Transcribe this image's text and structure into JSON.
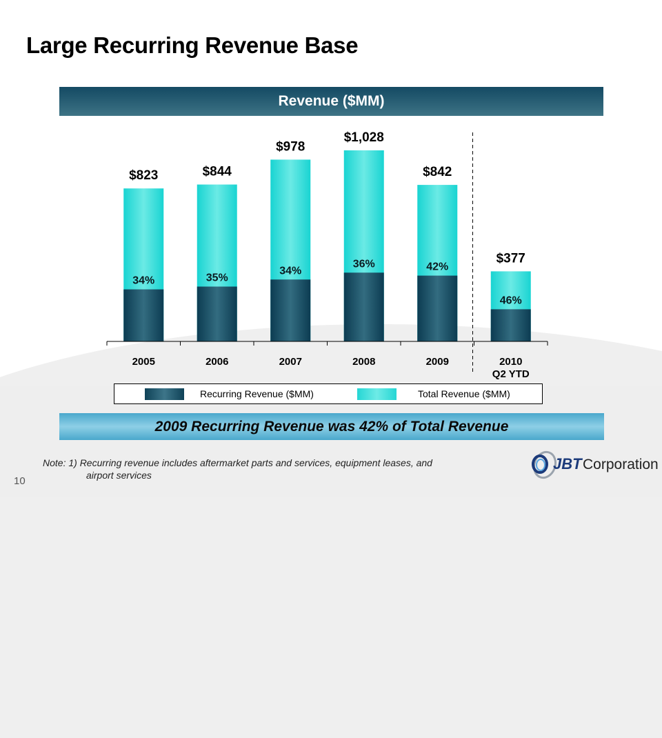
{
  "slide": {
    "title": "Large Recurring Revenue Base",
    "header_banner": "Revenue ($MM)",
    "takeaway_banner": "2009 Recurring Revenue was 42% of Total Revenue",
    "note_line1": "Note: 1) Recurring revenue includes aftermarket parts and services, equipment leases, and",
    "note_line2": "airport services",
    "page_number": "10",
    "logo": {
      "mark": "JBT",
      "text": "Corporation"
    }
  },
  "colors": {
    "recurring": "#1a5268",
    "total": "#2fdcd8",
    "header_banner": "#144a63",
    "takeaway_banner": "#5fb4d6"
  },
  "chart_data": {
    "type": "bar",
    "title": "Revenue ($MM)",
    "xlabel": "",
    "ylabel": "",
    "ylim": [
      0,
      1100
    ],
    "grid": false,
    "legend_position": "bottom",
    "categories": [
      "2005",
      "2006",
      "2007",
      "2008",
      "2009",
      "2010\nQ2 YTD"
    ],
    "category_lines": [
      [
        "2005"
      ],
      [
        "2006"
      ],
      [
        "2007"
      ],
      [
        "2008"
      ],
      [
        "2009"
      ],
      [
        "2010",
        "Q2 YTD"
      ]
    ],
    "series": [
      {
        "name": "Total Revenue ($MM)",
        "values": [
          823,
          844,
          978,
          1028,
          842,
          377
        ]
      },
      {
        "name": "Recurring Revenue ($MM)",
        "values": [
          280,
          295,
          333,
          370,
          354,
          173
        ],
        "percent_of_total": [
          34,
          35,
          34,
          36,
          42,
          46
        ]
      }
    ],
    "total_labels": [
      "$823",
      "$844",
      "$978",
      "$1,028",
      "$842",
      "$377"
    ],
    "percent_labels": [
      "34%",
      "35%",
      "34%",
      "36%",
      "42%",
      "46%"
    ],
    "divider_before_category": "2010\nQ2 YTD",
    "legend": [
      "Recurring Revenue ($MM)",
      "Total Revenue ($MM)"
    ]
  }
}
